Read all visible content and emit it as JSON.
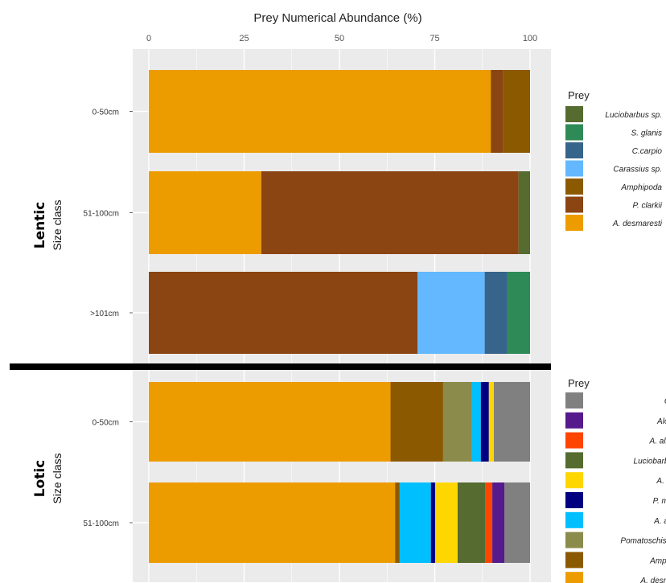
{
  "chart_data": {
    "type": "bar",
    "orientation": "horizontal",
    "stacked": true,
    "title": "Prey Numerical Abundance (%)",
    "x_ticks": [
      0,
      25,
      50,
      75,
      100
    ],
    "xlim": [
      0,
      100
    ],
    "grid": true,
    "panels": [
      {
        "id": "lentic",
        "label": "Lentic",
        "axis_label": "Size class",
        "legend_title": "Prey",
        "legend": [
          "Luciobarbus sp.",
          "S. glanis",
          "C.carpio",
          "Carassius sp.",
          "Amphipoda",
          "P. clarkii",
          "A. desmaresti"
        ],
        "categories": [
          "0-50cm",
          "51-100cm",
          ">101cm"
        ],
        "series": [
          {
            "name": "A. desmaresti",
            "color": "#ED9C00",
            "values": [
              89.7,
              29.5,
              0
            ]
          },
          {
            "name": "P. clarkii",
            "color": "#8B4513",
            "values": [
              3.3,
              67.5,
              70.5
            ]
          },
          {
            "name": "Amphipoda",
            "color": "#8B5A00",
            "values": [
              7.0,
              0,
              0
            ]
          },
          {
            "name": "Carassius sp.",
            "color": "#63B8FF",
            "values": [
              0,
              0,
              17.6
            ]
          },
          {
            "name": "C.carpio",
            "color": "#36648B",
            "values": [
              0,
              0,
              5.9
            ]
          },
          {
            "name": "S. glanis",
            "color": "#2E8B57",
            "values": [
              0,
              0,
              6.0
            ]
          },
          {
            "name": "Luciobarbus sp.",
            "color": "#556B2F",
            "values": [
              0,
              3.0,
              0
            ]
          }
        ]
      },
      {
        "id": "lotic",
        "label": "Lotic",
        "axis_label": "Size class",
        "legend_title": "Prey",
        "legend": [
          "Oth",
          "Alosa",
          "A. albur",
          "Luciobarbus",
          "A. boj",
          "P. mari",
          "A. ang",
          "Pomatoschistus",
          "Amphip",
          "A. desmar"
        ],
        "categories": [
          "0-50cm",
          "51-100cm"
        ],
        "series": [
          {
            "name": "A. desmar",
            "color": "#ED9C00",
            "values": [
              63.4,
              64.6
            ]
          },
          {
            "name": "Amphip",
            "color": "#8B5A00",
            "values": [
              13.8,
              1.2
            ]
          },
          {
            "name": "Pomatoschistus",
            "color": "#8B8B4C",
            "values": [
              7.4,
              0
            ]
          },
          {
            "name": "A. ang",
            "color": "#00BFFF",
            "values": [
              2.5,
              8.2
            ]
          },
          {
            "name": "P. mari",
            "color": "#000080",
            "values": [
              2.1,
              1.1
            ]
          },
          {
            "name": "A. boj",
            "color": "#FFD700",
            "values": [
              1.3,
              5.9
            ]
          },
          {
            "name": "Luciobarbus",
            "color": "#556B2F",
            "values": [
              0,
              7.2
            ]
          },
          {
            "name": "A. albur",
            "color": "#FF4500",
            "values": [
              0,
              1.9
            ]
          },
          {
            "name": "Alosa",
            "color": "#551A8B",
            "values": [
              0,
              3.2
            ]
          },
          {
            "name": "Oth",
            "color": "#808080",
            "values": [
              9.5,
              6.7
            ]
          }
        ]
      }
    ]
  }
}
